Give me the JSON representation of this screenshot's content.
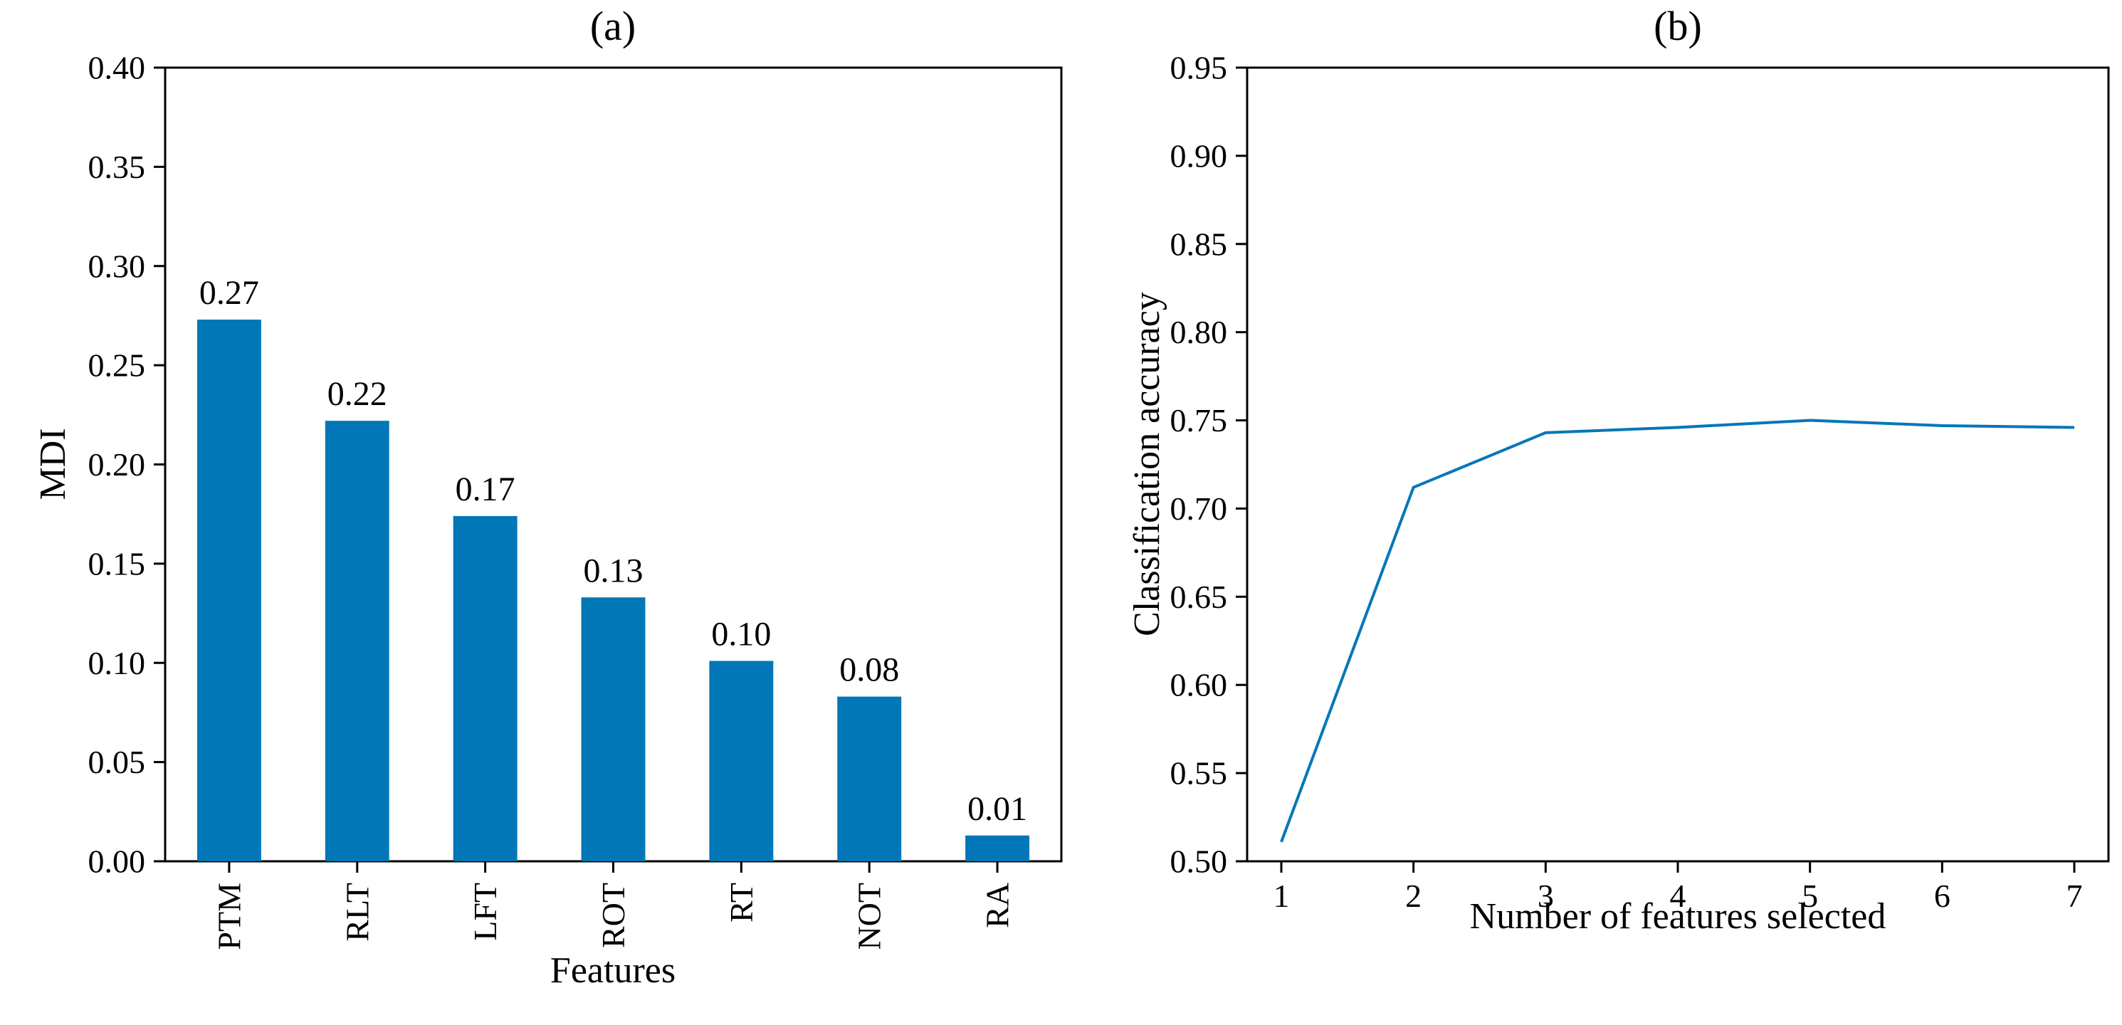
{
  "figure": {
    "background": "#ffffff",
    "text_color": "#000000",
    "accent_blue": "#0277B8"
  },
  "chart_data": [
    {
      "type": "bar",
      "title": "(a)",
      "xlabel": "Features",
      "ylabel": "MDI",
      "categories": [
        "PTM",
        "RLT",
        "LFT",
        "ROT",
        "RT",
        "NOT",
        "RA"
      ],
      "values": [
        0.273,
        0.222,
        0.174,
        0.133,
        0.101,
        0.083,
        0.013
      ],
      "bar_labels": [
        "0.27",
        "0.22",
        "0.17",
        "0.13",
        "0.10",
        "0.08",
        "0.01"
      ],
      "ylim": [
        0.0,
        0.4
      ],
      "ytick_step": 0.05,
      "yticks": [
        "0.00",
        "0.05",
        "0.10",
        "0.15",
        "0.20",
        "0.25",
        "0.30",
        "0.35",
        "0.40"
      ],
      "xtick_rotation": 90,
      "grid": false,
      "bar_color": "#0277B8"
    },
    {
      "type": "line",
      "title": "(b)",
      "xlabel": "Number of features selected",
      "ylabel": "Classification accuracy",
      "x": [
        1,
        2,
        3,
        4,
        5,
        6,
        7
      ],
      "values": [
        0.511,
        0.712,
        0.743,
        0.746,
        0.75,
        0.747,
        0.746
      ],
      "ylim": [
        0.5,
        0.95
      ],
      "ytick_step": 0.05,
      "yticks": [
        "0.50",
        "0.55",
        "0.60",
        "0.65",
        "0.70",
        "0.75",
        "0.80",
        "0.85",
        "0.90",
        "0.95"
      ],
      "xticks": [
        "1",
        "2",
        "3",
        "4",
        "5",
        "6",
        "7"
      ],
      "grid": false,
      "line_color": "#0277B8"
    }
  ]
}
